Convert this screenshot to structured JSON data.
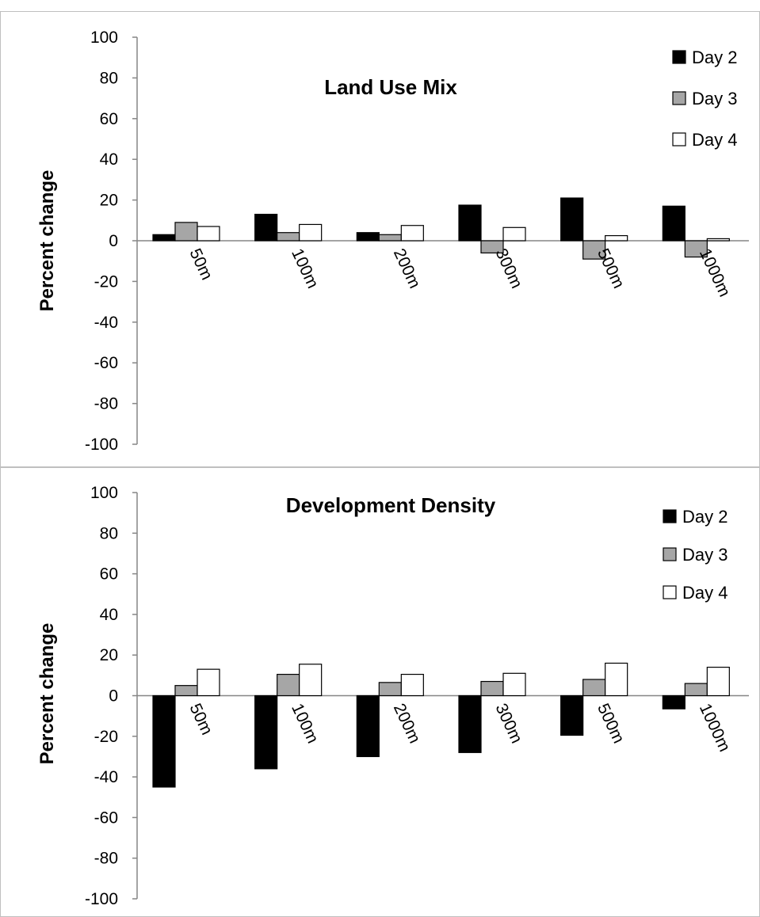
{
  "chart_data": [
    {
      "type": "bar",
      "title": "Land Use Mix",
      "ylabel": "Percent change",
      "xlabel": "",
      "ylim": [
        -100,
        100
      ],
      "yticks": [
        100,
        80,
        60,
        40,
        20,
        0,
        -20,
        -40,
        -60,
        -80,
        -100
      ],
      "categories": [
        "50m",
        "100m",
        "200m",
        "300m",
        "500m",
        "1000m"
      ],
      "legend_position": "top-right",
      "grid": false,
      "series": [
        {
          "name": "Day 2",
          "color": "#000000",
          "values": [
            3,
            13,
            4,
            17.5,
            21,
            17
          ]
        },
        {
          "name": "Day 3",
          "color": "#a6a6a6",
          "values": [
            9,
            4,
            3,
            -6,
            -9,
            -8
          ]
        },
        {
          "name": "Day 4",
          "color": "#ffffff",
          "values": [
            7,
            8,
            7.5,
            6.5,
            2.5,
            1
          ]
        }
      ]
    },
    {
      "type": "bar",
      "title": "Development Density",
      "ylabel": "Percent change",
      "xlabel": "",
      "ylim": [
        -100,
        100
      ],
      "yticks": [
        100,
        80,
        60,
        40,
        20,
        0,
        -20,
        -40,
        -60,
        -80,
        -100
      ],
      "categories": [
        "50m",
        "100m",
        "200m",
        "300m",
        "500m",
        "1000m"
      ],
      "legend_position": "top-right",
      "grid": false,
      "series": [
        {
          "name": "Day 2",
          "color": "#000000",
          "values": [
            -45,
            -36,
            -30,
            -28,
            -19.5,
            -6.5
          ]
        },
        {
          "name": "Day 3",
          "color": "#a6a6a6",
          "values": [
            5,
            10.5,
            6.5,
            7,
            8,
            6
          ]
        },
        {
          "name": "Day 4",
          "color": "#ffffff",
          "values": [
            13,
            15.5,
            10.5,
            11,
            16,
            14
          ]
        }
      ]
    }
  ]
}
